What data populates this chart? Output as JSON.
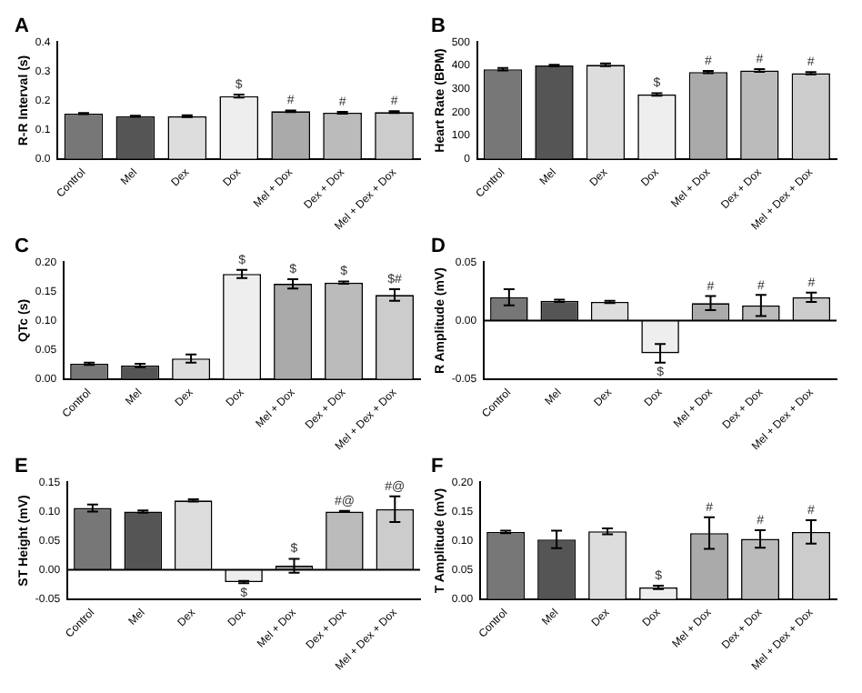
{
  "chart_data": [
    {
      "type": "bar",
      "title": "A",
      "ylabel": "R-R Interval (s)",
      "categories": [
        "Control",
        "Mel",
        "Dex",
        "Dox",
        "Mel + Dox",
        "Dex + Dox",
        "Mel + Dex + Dox"
      ],
      "values": [
        0.155,
        0.146,
        0.146,
        0.215,
        0.163,
        0.158,
        0.16
      ],
      "errors": [
        0.002,
        0.002,
        0.003,
        0.005,
        0.003,
        0.003,
        0.003
      ],
      "colors": [
        "#777777",
        "#555555",
        "#dddddd",
        "#eeeeee",
        "#aaaaaa",
        "#bbbbbb",
        "#cccccc"
      ],
      "ylim": [
        0,
        0.4
      ],
      "yticks": [
        {
          "value": 0,
          "label": "0.0"
        },
        0.1,
        0.2,
        0.3,
        0.4
      ],
      "annotations": [
        {
          "text": "$",
          "x": "Dox",
          "y": 0.22
        },
        {
          "text": "#",
          "x": "Mel + Dox",
          "y": 0.166
        },
        {
          "text": "#",
          "x": "Dex + Dox",
          "y": 0.161
        },
        {
          "text": "#",
          "x": "Mel + Dex + Dox",
          "y": 0.163
        }
      ]
    },
    {
      "type": "bar",
      "title": "B",
      "ylabel": "Heart Rate (BPM)",
      "categories": [
        "Control",
        "Mel",
        "Dex",
        "Dox",
        "Mel + Dox",
        "Dex + Dox",
        "Mel + Dex + Dox"
      ],
      "values": [
        384,
        400,
        403,
        276,
        372,
        379,
        367
      ],
      "errors": [
        5,
        3,
        6,
        5,
        5,
        6,
        5
      ],
      "colors": [
        "#777777",
        "#555555",
        "#dddddd",
        "#eeeeee",
        "#aaaaaa",
        "#bbbbbb",
        "#cccccc"
      ],
      "ylim": [
        0,
        500
      ],
      "yticks": [
        0,
        100,
        200,
        300,
        400,
        500
      ],
      "annotations": [
        {
          "text": "$",
          "x": "Dox",
          "y": 281
        },
        {
          "text": "#",
          "x": "Mel + Dox",
          "y": 377
        },
        {
          "text": "#",
          "x": "Dex + Dox",
          "y": 385
        },
        {
          "text": "#",
          "x": "Mel + Dex + Dox",
          "y": 372
        }
      ]
    },
    {
      "type": "bar",
      "title": "C",
      "ylabel": "QTc (s)",
      "categories": [
        "Control",
        "Mel",
        "Dex",
        "Dox",
        "Mel + Dox",
        "Dex + Dox",
        "Mel + Dex + Dox"
      ],
      "values": [
        0.026,
        0.023,
        0.035,
        0.18,
        0.163,
        0.165,
        0.144
      ],
      "errors": [
        0.002,
        0.003,
        0.007,
        0.007,
        0.008,
        0.002,
        0.01
      ],
      "colors": [
        "#777777",
        "#555555",
        "#dddddd",
        "#eeeeee",
        "#aaaaaa",
        "#bbbbbb",
        "#cccccc"
      ],
      "ylim": [
        0,
        0.2
      ],
      "yticks": [
        {
          "value": 0,
          "label": "0.00"
        },
        0.05,
        {
          "value": 0.1,
          "label": "0.10"
        },
        0.15,
        {
          "value": 0.2,
          "label": "0.20"
        }
      ],
      "annotations": [
        {
          "text": "$",
          "x": "Dox",
          "y": 0.187
        },
        {
          "text": "$",
          "x": "Mel + Dox",
          "y": 0.171
        },
        {
          "text": "$",
          "x": "Dex + Dox",
          "y": 0.167
        },
        {
          "text": "$#",
          "x": "Mel + Dex + Dox",
          "y": 0.154
        }
      ]
    },
    {
      "type": "bar",
      "title": "D",
      "ylabel": "R Amplitude (mV)",
      "categories": [
        "Control",
        "Mel",
        "Dex",
        "Dox",
        "Mel + Dox",
        "Dex + Dox",
        "Mel + Dex + Dox"
      ],
      "values": [
        0.02,
        0.017,
        0.016,
        -0.028,
        0.015,
        0.013,
        0.02
      ],
      "errors": [
        0.007,
        0.001,
        0.001,
        0.008,
        0.006,
        0.009,
        0.004
      ],
      "colors": [
        "#777777",
        "#555555",
        "#dddddd",
        "#eeeeee",
        "#aaaaaa",
        "#bbbbbb",
        "#cccccc"
      ],
      "ylim": [
        -0.05,
        0.05
      ],
      "yticks": [
        -0.05,
        {
          "value": 0,
          "label": "0.00"
        },
        0.05
      ],
      "ref_lines": [
        {
          "axis": "y",
          "value": 0
        }
      ],
      "annotations": [
        {
          "text": "$",
          "x": "Dox",
          "y": -0.0355
        },
        {
          "text": "#",
          "x": "Mel + Dox",
          "y": 0.0208
        },
        {
          "text": "#",
          "x": "Dex + Dox",
          "y": 0.0212
        },
        {
          "text": "#",
          "x": "Mel + Dex + Dox",
          "y": 0.0235
        }
      ]
    },
    {
      "type": "bar",
      "title": "E",
      "ylabel": "ST Height (mV)",
      "categories": [
        "Control",
        "Mel",
        "Dex",
        "Dox",
        "Mel + Dox",
        "Dex + Dox",
        "Mel + Dex + Dox"
      ],
      "values": [
        0.106,
        0.1,
        0.119,
        -0.021,
        0.007,
        0.1,
        0.104
      ],
      "errors": [
        0.006,
        0.002,
        0.002,
        0.002,
        0.012,
        0.001,
        0.022
      ],
      "colors": [
        "#777777",
        "#555555",
        "#dddddd",
        "#eeeeee",
        "#aaaaaa",
        "#bbbbbb",
        "#cccccc"
      ],
      "ylim": [
        -0.05,
        0.15
      ],
      "yticks": [
        -0.05,
        {
          "value": 0,
          "label": "0.00"
        },
        0.05,
        {
          "value": 0.1,
          "label": "0.10"
        },
        0.15
      ],
      "ref_lines": [
        {
          "axis": "y",
          "value": 0
        }
      ],
      "annotations": [
        {
          "text": "$",
          "x": "Dox",
          "y": -0.023
        },
        {
          "text": "$",
          "x": "Mel + Dox",
          "y": 0.019
        },
        {
          "text": "#@",
          "x": "Dex + Dox",
          "y": 0.101
        },
        {
          "text": "#@",
          "x": "Mel + Dex + Dox",
          "y": 0.126
        }
      ]
    },
    {
      "type": "bar",
      "title": "F",
      "ylabel": "T Amplitude (mV)",
      "categories": [
        "Control",
        "Mel",
        "Dex",
        "Dox",
        "Mel + Dox",
        "Dex + Dox",
        "Mel + Dex + Dox"
      ],
      "values": [
        0.115,
        0.102,
        0.116,
        0.02,
        0.113,
        0.103,
        0.115
      ],
      "errors": [
        0.002,
        0.015,
        0.005,
        0.003,
        0.027,
        0.015,
        0.02
      ],
      "colors": [
        "#777777",
        "#555555",
        "#dddddd",
        "#eeeeee",
        "#aaaaaa",
        "#bbbbbb",
        "#cccccc"
      ],
      "ylim": [
        0,
        0.2
      ],
      "yticks": [
        {
          "value": 0,
          "label": "0.00"
        },
        0.05,
        {
          "value": 0.1,
          "label": "0.10"
        },
        0.15,
        {
          "value": 0.2,
          "label": "0.20"
        }
      ],
      "annotations": [
        {
          "text": "$",
          "x": "Dox",
          "y": 0.023
        },
        {
          "text": "#",
          "x": "Mel + Dox",
          "y": 0.14
        },
        {
          "text": "#",
          "x": "Dex + Dox",
          "y": 0.118
        },
        {
          "text": "#",
          "x": "Mel + Dex + Dox",
          "y": 0.135
        }
      ]
    }
  ]
}
